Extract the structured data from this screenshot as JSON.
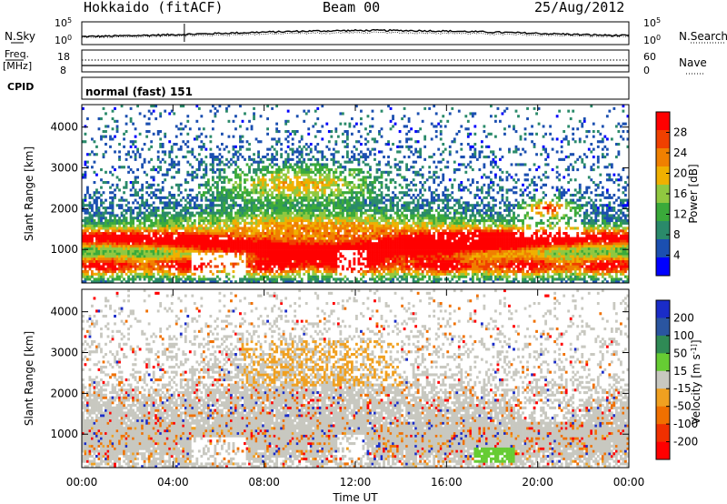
{
  "header": {
    "station": "Hokkaido (fitACF)",
    "beam": "Beam 00",
    "date": "25/Aug/2012"
  },
  "colors": {
    "power_scale": [
      "#0000ff",
      "#1b4fb0",
      "#2a8a6a",
      "#3aaa3a",
      "#90c840",
      "#f0b000",
      "#f08000",
      "#f04000",
      "#ff0000"
    ],
    "velocity_scale": [
      "#1a2cc8",
      "#2a55a0",
      "#2f8a55",
      "#66cc33",
      "#c8c8c0",
      "#f0a020",
      "#f07000",
      "#f03000",
      "#ff0000"
    ]
  },
  "chart_data": [
    {
      "type": "line",
      "name": "noise-panel",
      "left_label": "N.Sky",
      "right_label": "N.Search",
      "left_ticks": [
        "10^5",
        "10^0"
      ],
      "right_ticks": [
        "10^5",
        "10^0"
      ]
    },
    {
      "type": "line",
      "name": "frequency-panel",
      "left_label_top": "Freq.",
      "left_label_bottom": "[MHz]",
      "left_ticks": [
        "18",
        "8"
      ],
      "right_label": "Nave",
      "right_ticks": [
        "60",
        "0"
      ]
    },
    {
      "type": "table",
      "name": "cpid-panel",
      "label": "CPID",
      "value": "normal (fast) 151"
    },
    {
      "type": "heatmap",
      "name": "power-panel",
      "ylabel": "Slant Range [km]",
      "yticks": [
        1000,
        2000,
        3000,
        4000
      ],
      "ylim": [
        180,
        4550
      ],
      "colorbar_label": "Power [dB]",
      "colorbar_ticks": [
        "28",
        "24",
        "20",
        "16",
        "12",
        "8",
        "4"
      ],
      "clim": [
        0,
        32
      ]
    },
    {
      "type": "heatmap",
      "name": "velocity-panel",
      "ylabel": "Slant Range [km]",
      "yticks": [
        1000,
        2000,
        3000,
        4000
      ],
      "ylim": [
        180,
        4550
      ],
      "colorbar_label": "Velocity [m s^-1]",
      "colorbar_ticks": [
        "200",
        "100",
        "50",
        "15",
        "-15",
        "-50",
        "-100",
        "-200"
      ]
    }
  ],
  "time_axis": {
    "xlabel": "Time UT",
    "ticks": [
      "00:00",
      "04:00",
      "08:00",
      "12:00",
      "16:00",
      "20:00",
      "00:00"
    ],
    "xlim_hours": [
      0,
      24
    ]
  }
}
